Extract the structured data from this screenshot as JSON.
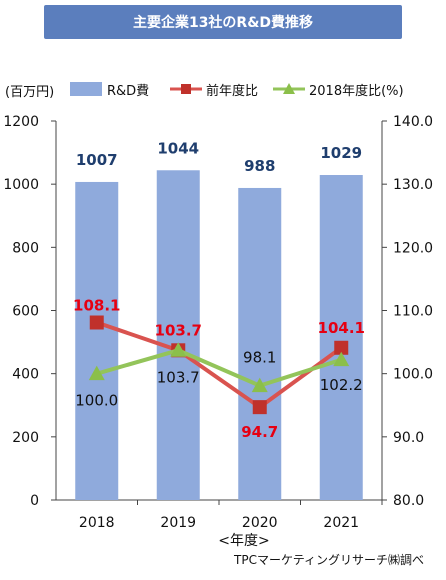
{
  "chart_data": {
    "type": "bar",
    "title": "主要企業13社のR&D費推移",
    "categories": [
      "2018",
      "2019",
      "2020",
      "2021"
    ],
    "xlabel": "<年度>",
    "y_left_unit": "(百万円)",
    "ylim_left": [
      0,
      1200
    ],
    "y_left_ticks": [
      0,
      200,
      400,
      600,
      800,
      1000,
      1200
    ],
    "ylim_right": [
      80,
      140
    ],
    "y_right_ticks": [
      "80.0",
      "90.0",
      "100.0",
      "110.0",
      "120.0",
      "130.0",
      "140.0"
    ],
    "series": [
      {
        "name": "R&D費",
        "type": "bar",
        "axis": "left",
        "values": [
          1007,
          1044,
          988,
          1029
        ],
        "color": "#8faadc",
        "label_color": "#1f3e6e"
      },
      {
        "name": "前年度比",
        "type": "line",
        "axis": "right",
        "values": [
          null,
          103.7,
          94.7,
          104.1
        ],
        "labels": [
          "108.1",
          "103.7",
          "94.7",
          "104.1"
        ],
        "marker": "square",
        "marker_levels": [
          108.1,
          103.7,
          94.7,
          104.1
        ],
        "color": "#d9534f",
        "marker_color": "#c0312b",
        "label_color": "#e60012"
      },
      {
        "name": "2018年度比(%)",
        "type": "line",
        "axis": "right",
        "values": [
          100.0,
          103.7,
          98.1,
          102.2
        ],
        "labels": [
          "100.0",
          "103.7",
          "98.1",
          "102.2"
        ],
        "marker": "triangle",
        "color": "#93c45a",
        "marker_color": "#8bbf4a",
        "label_color": "#111111"
      }
    ],
    "legend": {
      "position": "top"
    },
    "grid": false
  },
  "source_note": "TPCマーケティングリサーチ㈱調べ"
}
